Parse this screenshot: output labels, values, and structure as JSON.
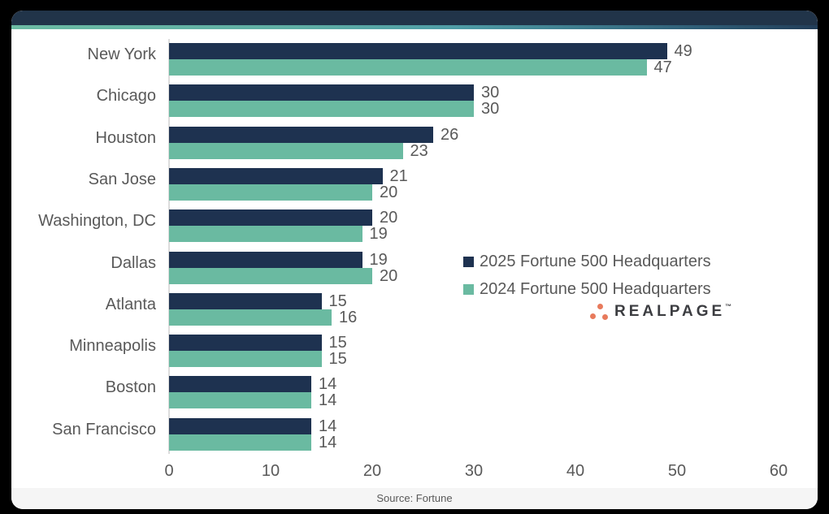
{
  "page": {
    "background_color": "#000000"
  },
  "card": {
    "background_color": "#FFFFFF"
  },
  "header": {
    "bar_color": "#213449",
    "accent_gradient_colors": [
      "#6CBBA3",
      "#4F9DA6",
      "#2F5E77",
      "#223D58"
    ]
  },
  "chart_data": {
    "type": "bar",
    "orientation": "horizontal",
    "title": "",
    "categories": [
      "New York",
      "Chicago",
      "Houston",
      "San Jose",
      "Washington, DC",
      "Dallas",
      "Atlanta",
      "Minneapolis",
      "Boston",
      "San Francisco"
    ],
    "series": [
      {
        "name": "2025 Fortune 500 Headquarters",
        "color": "#1E3250",
        "values": [
          49,
          30,
          26,
          21,
          20,
          19,
          15,
          15,
          14,
          14
        ]
      },
      {
        "name": "2024 Fortune 500 Headquarters",
        "color": "#6ABAA1",
        "values": [
          47,
          30,
          23,
          20,
          19,
          20,
          16,
          15,
          14,
          14
        ]
      }
    ],
    "xlim": [
      0,
      60
    ],
    "xticks": [
      0,
      10,
      20,
      30,
      40,
      50,
      60
    ],
    "value_labels": true,
    "grid": false,
    "axis_line_color": "#DCDCDC",
    "label_color": "#595959",
    "legend_position": "right-middle"
  },
  "legend": {
    "items": [
      {
        "label": "2025 Fortune 500 Headquarters",
        "color": "#1E3250"
      },
      {
        "label": "2024 Fortune 500 Headquarters",
        "color": "#6ABAA1"
      }
    ]
  },
  "logo": {
    "text": "REALPAGE",
    "trademark": "™",
    "dot_color": "#E87A5C",
    "text_color": "#3C3D41"
  },
  "footer": {
    "source": "Source: Fortune",
    "background_color": "#F5F5F5"
  }
}
